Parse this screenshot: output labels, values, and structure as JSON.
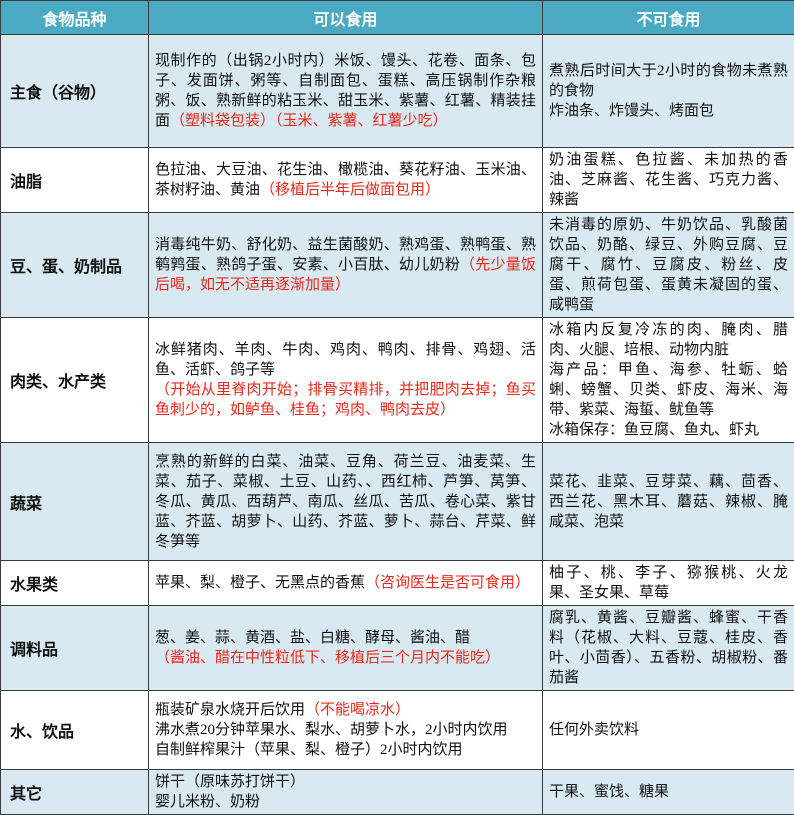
{
  "colors": {
    "header_bg": "#4aaac4",
    "band_bg": "#d8e9f1",
    "white_bg": "#ffffff",
    "border": "#3a3a3a",
    "red_text": "#e8291c",
    "header_text": "#ffffff"
  },
  "table": {
    "header": [
      "食物品种",
      "可以食用",
      "不可食用"
    ],
    "rows": [
      {
        "category": "主食（谷物）",
        "can_eat": [
          [
            {
              "text": "现制作的（出锅2小时内）米饭、馒头、花卷、面条、包子、发面饼、粥等、自制面包、蛋糕、高压锅制作杂粮粥、饭、熟新鲜的粘玉米、甜玉米、紫薯、红薯、精装挂面",
              "red": false
            },
            {
              "text": "（塑料袋包装）（玉米、紫薯、红薯少吃）",
              "red": true
            }
          ]
        ],
        "cannot_eat": [
          [
            {
              "text": "煮熟后时间大于2小时的食物未煮熟的食物",
              "red": false
            }
          ],
          [
            {
              "text": "炸油条、炸馒头、烤面包",
              "red": false
            }
          ]
        ]
      },
      {
        "category": "油脂",
        "can_eat": [
          [
            {
              "text": "色拉油、大豆油、花生油、橄榄油、葵花籽油、玉米油、茶树籽油、黄油",
              "red": false
            },
            {
              "text": "（移植后半年后做面包用）",
              "red": true
            }
          ]
        ],
        "cannot_eat": [
          [
            {
              "text": "奶油蛋糕、色拉酱、未加热的香油、芝麻酱、花生酱、巧克力酱、辣酱",
              "red": false
            }
          ]
        ]
      },
      {
        "category": "豆、蛋、奶制品",
        "can_eat": [
          [
            {
              "text": "消毒纯牛奶、舒化奶、益生菌酸奶、熟鸡蛋、熟鸭蛋、熟鹌鹑蛋、熟鸽子蛋、安素、小百肽、幼儿奶粉",
              "red": false
            },
            {
              "text": "（先少量饭后喝，如无不适再逐渐加量）",
              "red": true
            }
          ]
        ],
        "cannot_eat": [
          [
            {
              "text": "未消毒的原奶、牛奶饮品、乳酸菌饮品、奶酪、绿豆、外购豆腐、豆腐干、腐竹、豆腐皮、粉丝、皮蛋、煎荷包蛋、蛋黄未凝固的蛋、咸鸭蛋",
              "red": false
            }
          ]
        ]
      },
      {
        "category": "肉类、水产类",
        "can_eat": [
          [
            {
              "text": "冰鲜猪肉、羊肉、牛肉、鸡肉、鸭肉、排骨、鸡翅、活鱼、活虾、鸽子等",
              "red": false
            }
          ],
          [
            {
              "text": "（开始从里脊肉开始；排骨买精排，并把肥肉去掉；鱼买鱼刺少的，如鲈鱼、桂鱼；鸡肉、鸭肉去皮）",
              "red": true
            }
          ]
        ],
        "cannot_eat": [
          [
            {
              "text": "冰箱内反复冷冻的肉、腌肉、腊肉、火腿、培根、动物内脏",
              "red": false
            }
          ],
          [
            {
              "text": "海产品：甲鱼、海参、牡蛎、蛤蜊、螃蟹、贝类、虾皮、海米、海带、紫菜、海蜇、鱿鱼等",
              "red": false
            }
          ],
          [
            {
              "text": "冰箱保存：鱼豆腐、鱼丸、虾丸",
              "red": false
            }
          ]
        ]
      },
      {
        "category": "蔬菜",
        "can_eat": [
          [
            {
              "text": "烹熟的新鲜的白菜、油菜、豆角、荷兰豆、油麦菜、生菜、茄子、菜椒、土豆、山药、、西红柿、芦笋、莴笋、冬瓜、黄瓜、西葫芦、南瓜、丝瓜、苦瓜、卷心菜、紫甘蓝、芥蓝、胡萝卜、山药、芥蓝、萝卜、蒜台、芹菜、鲜冬笋等",
              "red": false
            }
          ]
        ],
        "cannot_eat": [
          [
            {
              "text": "菜花、韭菜、豆芽菜、藕、茴香、西兰花、黑木耳、蘑菇、辣椒、腌咸菜、泡菜",
              "red": false
            }
          ]
        ]
      },
      {
        "category": "水果类",
        "can_eat": [
          [
            {
              "text": "苹果、梨、橙子、无黑点的香蕉",
              "red": false
            },
            {
              "text": "（咨询医生是否可食用）",
              "red": true
            }
          ]
        ],
        "cannot_eat": [
          [
            {
              "text": "柚子、桃、李子、猕猴桃、火龙果、圣女果、草莓",
              "red": false
            }
          ]
        ]
      },
      {
        "category": "调料品",
        "can_eat": [
          [
            {
              "text": "葱、姜、蒜、黄酒、盐、白糖、酵母、酱油、醋",
              "red": false
            }
          ],
          [
            {
              "text": "（酱油、醋在中性粒低下、移植后三个月内不能吃）",
              "red": true
            }
          ]
        ],
        "cannot_eat": [
          [
            {
              "text": "腐乳、黄酱、豆瓣酱、蜂蜜、干香料（花椒、大料、豆蔻、桂皮、香叶、小茴香）、五香粉、胡椒粉、番茄酱",
              "red": false
            }
          ]
        ]
      },
      {
        "category": "水、饮品",
        "can_eat": [
          [
            {
              "text": "瓶装矿泉水烧开后饮用",
              "red": false
            },
            {
              "text": "（不能喝凉水）",
              "red": true
            }
          ],
          [
            {
              "text": "沸水煮20分钟苹果水、梨水、胡萝卜水，2小时内饮用",
              "red": false
            }
          ],
          [
            {
              "text": "自制鲜榨果汁（苹果、梨、橙子）2小时内饮用",
              "red": false
            }
          ]
        ],
        "cannot_eat": [
          [
            {
              "text": "任何外卖饮料",
              "red": false
            }
          ]
        ]
      },
      {
        "category": "其它",
        "can_eat": [
          [
            {
              "text": "饼干（原味苏打饼干）",
              "red": false
            }
          ],
          [
            {
              "text": "婴儿米粉、奶粉",
              "red": false
            }
          ]
        ],
        "cannot_eat": [
          [
            {
              "text": "干果、蜜饯、糖果",
              "red": false
            }
          ]
        ]
      }
    ]
  }
}
